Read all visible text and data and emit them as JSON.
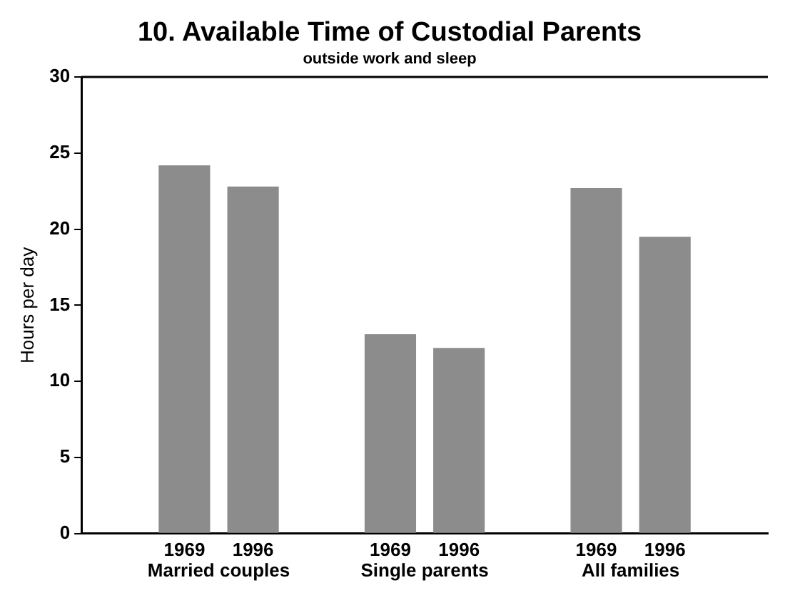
{
  "chart_data": {
    "type": "bar",
    "title": "10. Available Time of Custodial Parents",
    "subtitle": "outside work and sleep",
    "ylabel": "Hours per day",
    "categories": [
      null,
      "1969",
      "1996",
      null,
      "1969",
      "1996",
      null,
      "1969",
      "1996",
      null
    ],
    "values": [
      null,
      24.2,
      22.8,
      null,
      13.1,
      12.2,
      null,
      22.7,
      19.5,
      null
    ],
    "color": "#8c8c8c",
    "ylim": [
      0,
      30
    ],
    "yticks": [
      0,
      5,
      10,
      15,
      20,
      25,
      30
    ],
    "grid": false,
    "legend": false,
    "annotations": [
      "Married couples",
      "Single parents",
      "All families"
    ]
  }
}
